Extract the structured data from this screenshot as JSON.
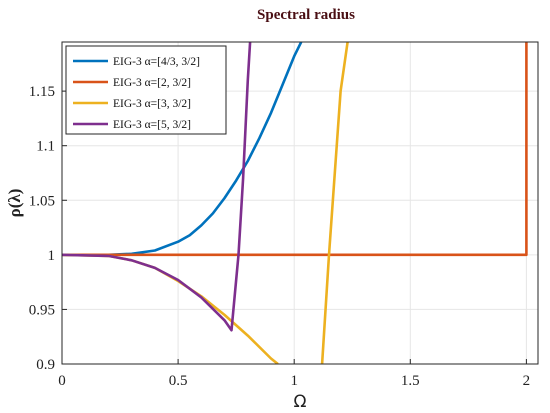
{
  "chart_data": {
    "type": "line",
    "title": "Spectral radius",
    "xlabel": "Ω",
    "ylabel": "ρ(λ)",
    "xlim": [
      0,
      2.05
    ],
    "ylim": [
      0.9,
      1.195
    ],
    "grid": true,
    "legend_position": "top-left",
    "xticks": [
      "0",
      "0.5",
      "1",
      "1.5",
      "2"
    ],
    "yticks": [
      "0.9",
      "0.95",
      "1",
      "1.05",
      "1.1",
      "1.15"
    ],
    "series": [
      {
        "name": "EIG-3 α=[4/3, 3/2]",
        "color": "#0072bd",
        "x": [
          0,
          0.2,
          0.3,
          0.4,
          0.5,
          0.55,
          0.6,
          0.65,
          0.7,
          0.75,
          0.8,
          0.85,
          0.9,
          0.95,
          1.0,
          1.03
        ],
        "y": [
          1.0,
          1.0,
          1.001,
          1.004,
          1.012,
          1.018,
          1.027,
          1.038,
          1.052,
          1.068,
          1.086,
          1.107,
          1.13,
          1.156,
          1.182,
          1.195
        ]
      },
      {
        "name": "EIG-3 α=[2, 3/2]",
        "color": "#d95319",
        "x": [
          0,
          2.0,
          2.0,
          2.005
        ],
        "y": [
          1.0,
          1.0,
          1.195,
          1.195
        ]
      },
      {
        "name": "EIG-3 α=[3, 3/2]",
        "color": "#edb120",
        "x": [
          0,
          0.2,
          0.3,
          0.4,
          0.5,
          0.6,
          0.7,
          0.8,
          0.9,
          0.93,
          null,
          1.12,
          1.15,
          1.2,
          1.23
        ],
        "y": [
          1.0,
          0.999,
          0.995,
          0.988,
          0.976,
          0.962,
          0.945,
          0.926,
          0.905,
          0.9,
          null,
          0.9,
          1.0,
          1.15,
          1.195
        ]
      },
      {
        "name": "EIG-3 α=[5, 3/2]",
        "color": "#7e2f8e",
        "x": [
          0,
          0.2,
          0.3,
          0.4,
          0.5,
          0.6,
          0.7,
          0.73,
          0.76,
          0.78,
          0.8,
          0.81
        ],
        "y": [
          1.0,
          0.999,
          0.995,
          0.988,
          0.977,
          0.961,
          0.94,
          0.931,
          1.0,
          1.07,
          1.16,
          1.195
        ]
      }
    ]
  }
}
